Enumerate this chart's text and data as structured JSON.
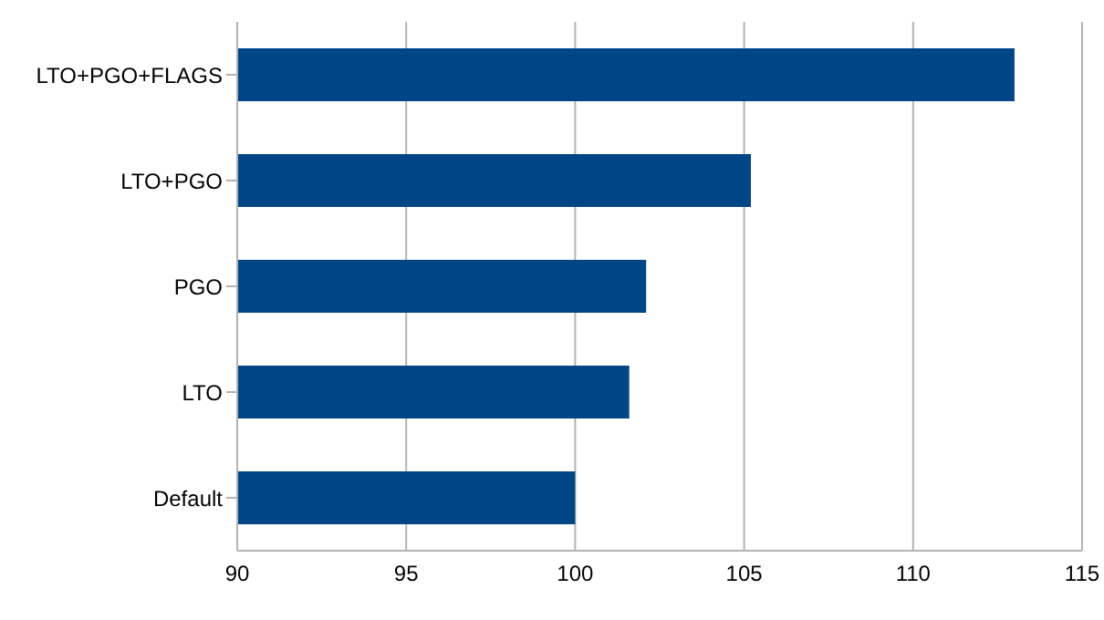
{
  "chart_data": {
    "type": "bar",
    "orientation": "horizontal",
    "categories": [
      "LTO+PGO+FLAGS",
      "LTO+PGO",
      "PGO",
      "LTO",
      "Default"
    ],
    "values": [
      113.0,
      105.2,
      102.1,
      101.6,
      100
    ],
    "color": "#004586",
    "xlim": [
      90,
      115
    ],
    "xticks": [
      90,
      95,
      100,
      105,
      110,
      115
    ],
    "grid": "x"
  }
}
